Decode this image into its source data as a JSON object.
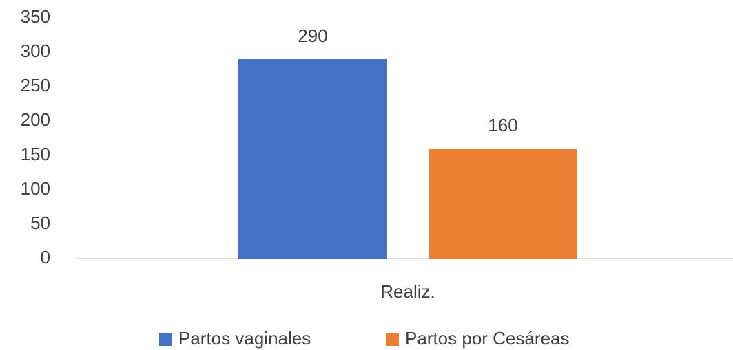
{
  "chart_data": {
    "type": "bar",
    "categories": [
      "Realiz."
    ],
    "series": [
      {
        "name": "Partos vaginales",
        "color": "#4472c4",
        "values": [
          290
        ]
      },
      {
        "name": "Partos por Cesáreas",
        "color": "#ed7d31",
        "values": [
          160
        ]
      }
    ],
    "ylim": [
      0,
      350
    ],
    "yticks": [
      0,
      50,
      100,
      150,
      200,
      250,
      300,
      350
    ],
    "grid": false,
    "legend": "bottom",
    "data_labels": true
  }
}
